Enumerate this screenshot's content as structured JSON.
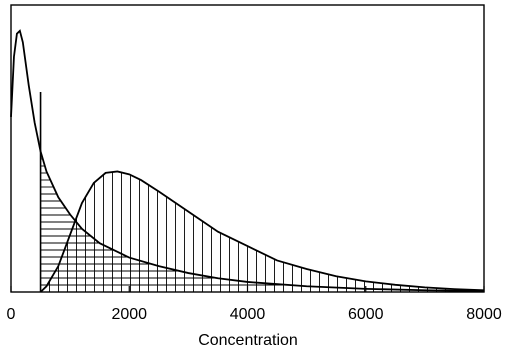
{
  "chart_data": {
    "type": "area",
    "xlabel": "Concentration",
    "ylabel": "",
    "xlim": [
      0,
      8000
    ],
    "ylim": [
      0,
      1
    ],
    "x_ticks": [
      "0",
      "2000",
      "4000",
      "6000",
      "8000"
    ],
    "grid": false,
    "threshold_x": 500,
    "series": [
      {
        "shading": "horizontal-hatch (x ≥ threshold)",
        "x": [
          0,
          50,
          100,
          150,
          200,
          300,
          400,
          500,
          600,
          800,
          1000,
          1200,
          1500,
          1800,
          2000,
          2500,
          3000,
          3500,
          4000,
          5000,
          6000,
          7000,
          8000
        ],
        "y": [
          0.61,
          0.82,
          0.9,
          0.91,
          0.87,
          0.72,
          0.59,
          0.49,
          0.42,
          0.33,
          0.27,
          0.22,
          0.17,
          0.14,
          0.12,
          0.09,
          0.066,
          0.048,
          0.035,
          0.02,
          0.011,
          0.006,
          0.003
        ]
      },
      {
        "shading": "vertical-hatch",
        "x": [
          500,
          600,
          800,
          1000,
          1200,
          1400,
          1600,
          1800,
          2000,
          2200,
          2500,
          3000,
          3500,
          4000,
          4500,
          5000,
          5500,
          6000,
          6500,
          7000,
          7500,
          8000
        ],
        "y": [
          0.0,
          0.02,
          0.09,
          0.2,
          0.31,
          0.38,
          0.415,
          0.42,
          0.41,
          0.39,
          0.35,
          0.28,
          0.21,
          0.16,
          0.11,
          0.08,
          0.055,
          0.037,
          0.025,
          0.016,
          0.01,
          0.006
        ]
      }
    ]
  }
}
